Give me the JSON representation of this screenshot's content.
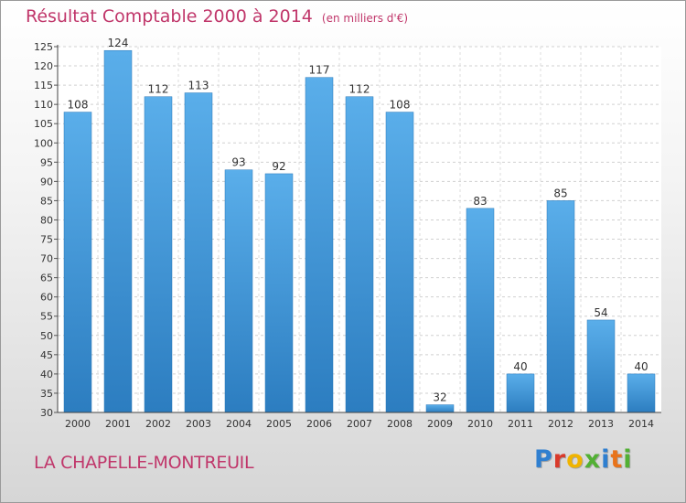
{
  "chart_data": {
    "type": "bar",
    "title": "Résultat Comptable 2000 à 2014",
    "subtitle": "(en milliers d'€)",
    "categories": [
      "2000",
      "2001",
      "2002",
      "2003",
      "2004",
      "2005",
      "2006",
      "2007",
      "2008",
      "2009",
      "2010",
      "2011",
      "2012",
      "2013",
      "2014"
    ],
    "values": [
      108,
      124,
      112,
      113,
      93,
      92,
      117,
      112,
      108,
      32,
      83,
      40,
      85,
      54,
      40
    ],
    "ylim": [
      30,
      125
    ],
    "yticks": [
      30,
      35,
      40,
      45,
      50,
      55,
      60,
      65,
      70,
      75,
      80,
      85,
      90,
      95,
      100,
      105,
      110,
      115,
      120,
      125
    ],
    "grid": true,
    "bar_color": "#4a9ed8"
  },
  "footer": {
    "commune": "LA CHAPELLE-MONTREUIL",
    "brand_letters": [
      {
        "ch": "P",
        "color": "#2f7fd0"
      },
      {
        "ch": "r",
        "color": "#d93a2b"
      },
      {
        "ch": "o",
        "color": "#f0b400"
      },
      {
        "ch": "x",
        "color": "#52b034"
      },
      {
        "ch": "i",
        "color": "#2f7fd0"
      },
      {
        "ch": "t",
        "color": "#e8731a"
      },
      {
        "ch": "i",
        "color": "#52b034"
      }
    ]
  }
}
